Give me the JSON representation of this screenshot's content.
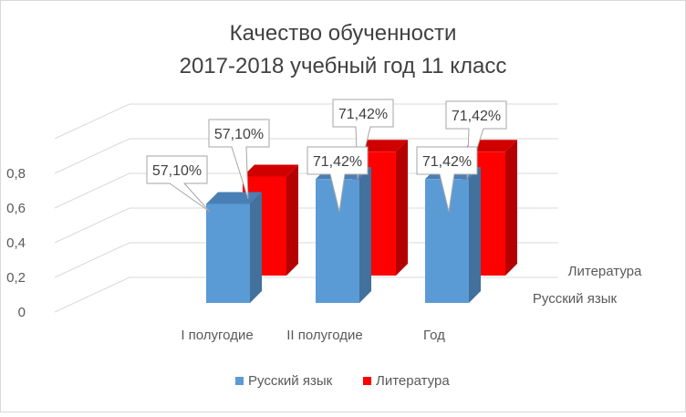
{
  "chart_data": {
    "type": "bar",
    "title_line1": "Качество обученности",
    "title_line2": "2017-2018 учебный год 11 класс",
    "categories": [
      "I полугодие",
      "II полугодие",
      "Год"
    ],
    "series": [
      {
        "name": "Русский язык",
        "values": [
          0.571,
          0.7142,
          0.7142
        ],
        "labels": [
          "57,10%",
          "71,42%",
          "71,42%"
        ],
        "color": "#5B9BD5",
        "side_color": "#41719C",
        "top_color": "#4A7FB5"
      },
      {
        "name": "Литература",
        "values": [
          0.571,
          0.7142,
          0.7142
        ],
        "labels": [
          "57,10%",
          "71,42%",
          "71,42%"
        ],
        "color": "#FF0000",
        "side_color": "#B50000",
        "top_color": "#D00000"
      }
    ],
    "y_ticks": [
      "0",
      "0,2",
      "0,4",
      "0,6",
      "0,8"
    ],
    "ylim": [
      0,
      1
    ],
    "depth_axis_labels": [
      "Литература",
      "Русский язык"
    ],
    "legend": [
      "Русский язык",
      "Литература"
    ],
    "legend_position": "bottom",
    "grid": true
  }
}
